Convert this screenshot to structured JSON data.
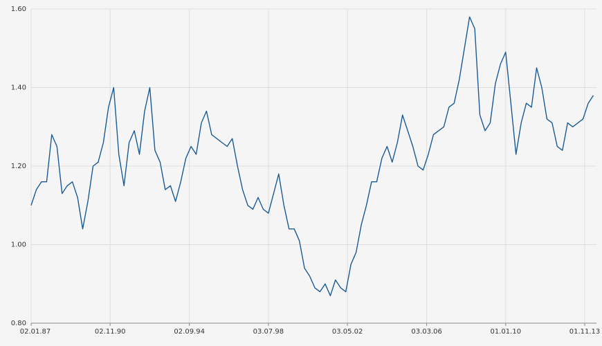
{
  "chart_data": {
    "type": "line",
    "x": [
      1987,
      1987.25,
      1987.5,
      1987.75,
      1988,
      1988.25,
      1988.5,
      1988.75,
      1989,
      1989.25,
      1989.5,
      1989.75,
      1990,
      1990.25,
      1990.5,
      1990.75,
      1991,
      1991.25,
      1991.5,
      1991.75,
      1992,
      1992.25,
      1992.5,
      1992.75,
      1993,
      1993.25,
      1993.5,
      1993.75,
      1994,
      1994.25,
      1994.5,
      1994.75,
      1995,
      1995.25,
      1995.5,
      1995.75,
      1996,
      1996.25,
      1996.5,
      1996.75,
      1997,
      1997.25,
      1997.5,
      1997.75,
      1998,
      1998.25,
      1998.5,
      1998.75,
      1999,
      1999.25,
      1999.5,
      1999.75,
      2000,
      2000.25,
      2000.5,
      2000.75,
      2001,
      2001.25,
      2001.5,
      2001.75,
      2002,
      2002.25,
      2002.5,
      2002.75,
      2003,
      2003.25,
      2003.5,
      2003.75,
      2004,
      2004.25,
      2004.5,
      2004.75,
      2005,
      2005.25,
      2005.5,
      2005.75,
      2006,
      2006.25,
      2006.5,
      2006.75,
      2007,
      2007.25,
      2007.5,
      2007.75,
      2008,
      2008.25,
      2008.5,
      2008.75,
      2009,
      2009.25,
      2009.5,
      2009.75,
      2010,
      2010.25,
      2010.5,
      2010.75,
      2011,
      2011.25,
      2011.5,
      2011.75,
      2012,
      2012.25,
      2012.5,
      2012.75,
      2013,
      2013.25,
      2013.5,
      2013.75,
      2014,
      2014.25
    ],
    "series": [
      {
        "color": "#1a5a96",
        "values": [
          1.1,
          1.14,
          1.16,
          1.16,
          1.28,
          1.25,
          1.13,
          1.15,
          1.16,
          1.12,
          1.04,
          1.11,
          1.2,
          1.21,
          1.26,
          1.35,
          1.4,
          1.23,
          1.15,
          1.26,
          1.29,
          1.23,
          1.34,
          1.4,
          1.24,
          1.21,
          1.14,
          1.15,
          1.11,
          1.16,
          1.22,
          1.25,
          1.23,
          1.31,
          1.34,
          1.28,
          1.27,
          1.26,
          1.25,
          1.27,
          1.2,
          1.14,
          1.1,
          1.09,
          1.12,
          1.09,
          1.08,
          1.13,
          1.18,
          1.1,
          1.04,
          1.04,
          1.01,
          0.94,
          0.92,
          0.89,
          0.88,
          0.9,
          0.87,
          0.91,
          0.89,
          0.88,
          0.95,
          0.98,
          1.05,
          1.1,
          1.16,
          1.16,
          1.22,
          1.25,
          1.21,
          1.26,
          1.33,
          1.29,
          1.25,
          1.2,
          1.19,
          1.23,
          1.28,
          1.29,
          1.3,
          1.35,
          1.36,
          1.42,
          1.5,
          1.58,
          1.55,
          1.33,
          1.29,
          1.31,
          1.41,
          1.46,
          1.49,
          1.36,
          1.23,
          1.31,
          1.36,
          1.35,
          1.45,
          1.4,
          1.32,
          1.31,
          1.25,
          1.24,
          1.31,
          1.3,
          1.31,
          1.32,
          1.36,
          1.38
        ]
      }
    ],
    "xlim": [
      1987,
      2014.4
    ],
    "xticks": [
      {
        "value": 1987,
        "label": "02.01.87"
      },
      {
        "value": 1990.83,
        "label": "02.11.90"
      },
      {
        "value": 1994.67,
        "label": "02.09.94"
      },
      {
        "value": 1998.5,
        "label": "03.07.98"
      },
      {
        "value": 2002.33,
        "label": "03.05.02"
      },
      {
        "value": 2006.17,
        "label": "03.03.06"
      },
      {
        "value": 2010,
        "label": "01.01.10"
      },
      {
        "value": 2013.83,
        "label": "01.11.13"
      }
    ],
    "ylim": [
      0.8,
      1.6
    ],
    "yticks": [
      {
        "value": 0.8,
        "label": "0.80"
      },
      {
        "value": 1.0,
        "label": "1.00"
      },
      {
        "value": 1.2,
        "label": "1.20"
      },
      {
        "value": 1.4,
        "label": "1.40"
      },
      {
        "value": 1.6,
        "label": "1.60"
      }
    ],
    "grid": true
  }
}
